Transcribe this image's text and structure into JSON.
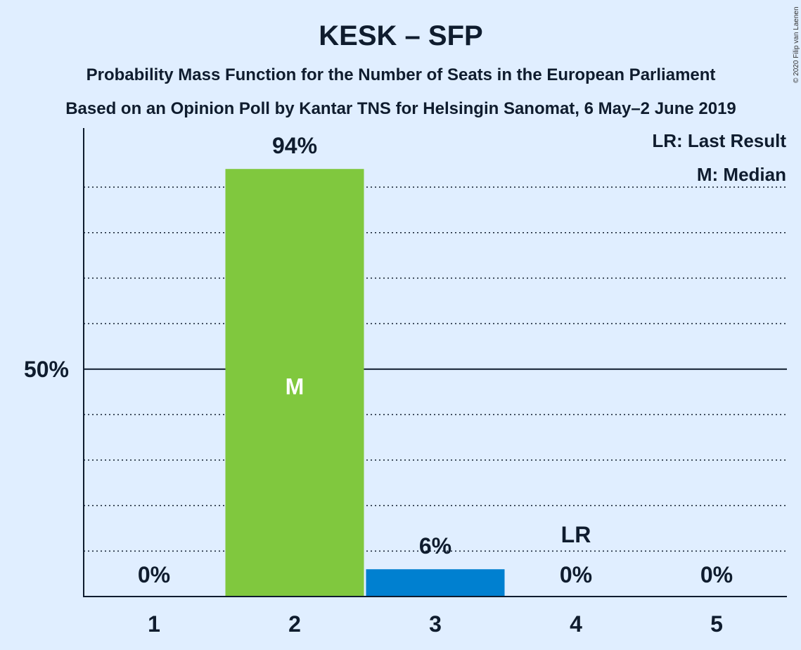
{
  "title": "KESK – SFP",
  "subtitle_1": "Probability Mass Function for the Number of Seats in the European Parliament",
  "subtitle_2": "Based on an Opinion Poll by Kantar TNS for Helsingin Sanomat, 6 May–2 June 2019",
  "legend": {
    "last_result": "LR: Last Result",
    "median": "M: Median"
  },
  "copyright": "© 2020 Filip van Laenen",
  "colors": {
    "background": "#e0eeff",
    "median_bar": "#80c83e",
    "other_bar": "#0080d0",
    "text": "#0f1c2e"
  },
  "chart_data": {
    "type": "bar",
    "categories": [
      "1",
      "2",
      "3",
      "4",
      "5"
    ],
    "values": [
      0,
      94,
      6,
      0,
      0
    ],
    "value_labels": [
      "0%",
      "94%",
      "6%",
      "0%",
      "0%"
    ],
    "median_category": "2",
    "median_marker": "M",
    "last_result_category": "4",
    "last_result_marker": "LR",
    "y_tick_label": "50%",
    "y_tick_value": 50,
    "ylim": [
      0,
      103
    ],
    "grid": "dotted every 10%"
  }
}
